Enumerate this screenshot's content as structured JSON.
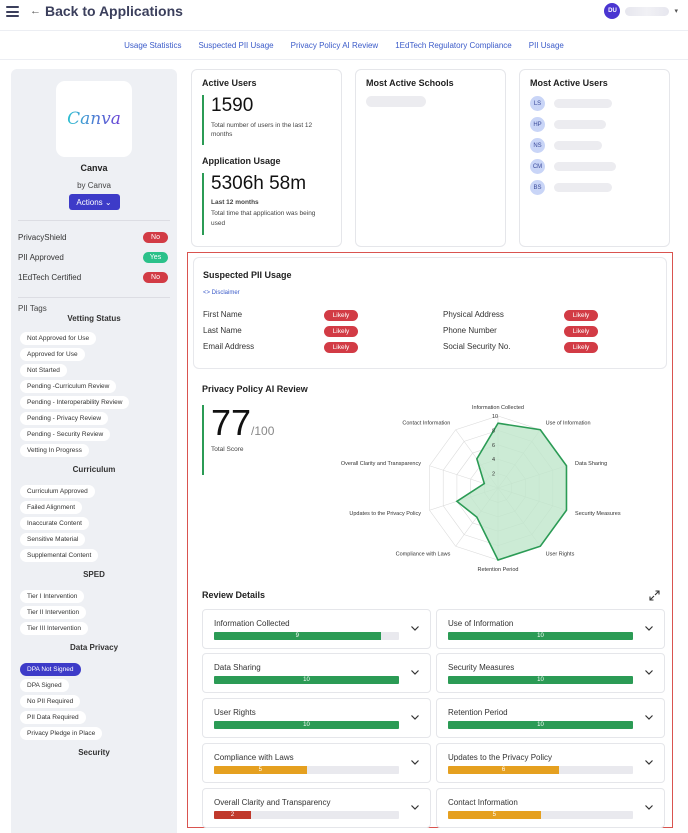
{
  "header": {
    "back_label": "Back to Applications",
    "user_initials": "DU"
  },
  "tabs": [
    {
      "label": "Usage Statistics"
    },
    {
      "label": "Suspected PII Usage"
    },
    {
      "label": "Privacy Policy AI Review"
    },
    {
      "label": "1EdTech Regulatory Compliance"
    },
    {
      "label": "PII Usage"
    }
  ],
  "sidebar": {
    "logo_text": "Canva",
    "app_name": "Canva",
    "by_line": "by Canva",
    "actions_label": "Actions",
    "statuses": [
      {
        "label": "PrivacyShield",
        "value": "No",
        "color": "#d23b45"
      },
      {
        "label": "PII Approved",
        "value": "Yes",
        "color": "#2bc18a"
      },
      {
        "label": "1EdTech Certified",
        "value": "No",
        "color": "#d23b45"
      }
    ],
    "pii_tags_label": "PII Tags",
    "vetting_title": "Vetting Status",
    "vetting": [
      "Not Approved for Use",
      "Approved for Use",
      "Not Started",
      "Pending -Curriculum Review",
      "Pending - Interoperability Review",
      "Pending - Privacy Review",
      "Pending - Security Review",
      "Vetting In Progress"
    ],
    "curriculum_title": "Curriculum",
    "curriculum": [
      "Curriculum Approved",
      "Failed Alignment",
      "Inaccurate Content",
      "Sensitive Material",
      "Supplemental Content"
    ],
    "sped_title": "SPED",
    "sped": [
      "Tier I Intervention",
      "Tier II Intervention",
      "Tier III Intervention"
    ],
    "data_privacy_title": "Data Privacy",
    "data_privacy": [
      "DPA Not Signed",
      "DPA Signed",
      "No PII Required",
      "PII Data Required",
      "Privacy Pledge in Place"
    ],
    "data_privacy_selected": "DPA Not Signed",
    "security_title": "Security"
  },
  "active_users": {
    "title": "Active Users",
    "value": "1590",
    "subtitle": "Total number of users in the last 12 months"
  },
  "app_usage": {
    "title": "Application Usage",
    "value": "5306h 58m",
    "period": "Last 12 months",
    "subtitle": "Total time that application was being used"
  },
  "most_active_schools": {
    "title": "Most Active Schools"
  },
  "most_active_users": {
    "title": "Most Active Users",
    "users": [
      "LS",
      "HP",
      "NS",
      "CM",
      "BS"
    ]
  },
  "pii": {
    "title": "Suspected PII Usage",
    "disclaimer": "<> Disclaimer",
    "items": [
      {
        "label": "First Name",
        "status": "Likely"
      },
      {
        "label": "Last Name",
        "status": "Likely"
      },
      {
        "label": "Email Address",
        "status": "Likely"
      },
      {
        "label": "Physical Address",
        "status": "Likely"
      },
      {
        "label": "Phone Number",
        "status": "Likely"
      },
      {
        "label": "Social Security No.",
        "status": "Likely"
      }
    ]
  },
  "policy_review": {
    "title": "Privacy Policy AI Review",
    "score": "77",
    "score_max": "/100",
    "score_label": "Total Score"
  },
  "chart_data": {
    "type": "radar",
    "categories": [
      "Information Collected",
      "Use of Information",
      "Data Sharing",
      "Security Measures",
      "User Rights",
      "Retention Period",
      "Compliance with Laws",
      "Updates to the Privacy Policy",
      "Overall Clarity and Transparency",
      "Contact Information"
    ],
    "values": [
      9,
      10,
      10,
      10,
      10,
      10,
      5,
      6,
      2,
      5
    ],
    "rlim": [
      0,
      10
    ],
    "ticks": [
      "2",
      "4",
      "6",
      "8",
      "10"
    ],
    "series_color": "#2b9b55",
    "fill_color": "#bfe6cb"
  },
  "review_details": {
    "title": "Review Details",
    "items": [
      {
        "label": "Information Collected",
        "value": 9,
        "color": "#2b9b55"
      },
      {
        "label": "Use of Information",
        "value": 10,
        "color": "#2b9b55"
      },
      {
        "label": "Data Sharing",
        "value": 10,
        "color": "#2b9b55"
      },
      {
        "label": "Security Measures",
        "value": 10,
        "color": "#2b9b55"
      },
      {
        "label": "User Rights",
        "value": 10,
        "color": "#2b9b55"
      },
      {
        "label": "Retention Period",
        "value": 10,
        "color": "#2b9b55"
      },
      {
        "label": "Compliance with Laws",
        "value": 5,
        "color": "#e5a020"
      },
      {
        "label": "Updates to the Privacy Policy",
        "value": 6,
        "color": "#e5a020"
      },
      {
        "label": "Overall Clarity and Transparency",
        "value": 2,
        "color": "#c0392b"
      },
      {
        "label": "Contact Information",
        "value": 5,
        "color": "#e5a020"
      }
    ]
  }
}
